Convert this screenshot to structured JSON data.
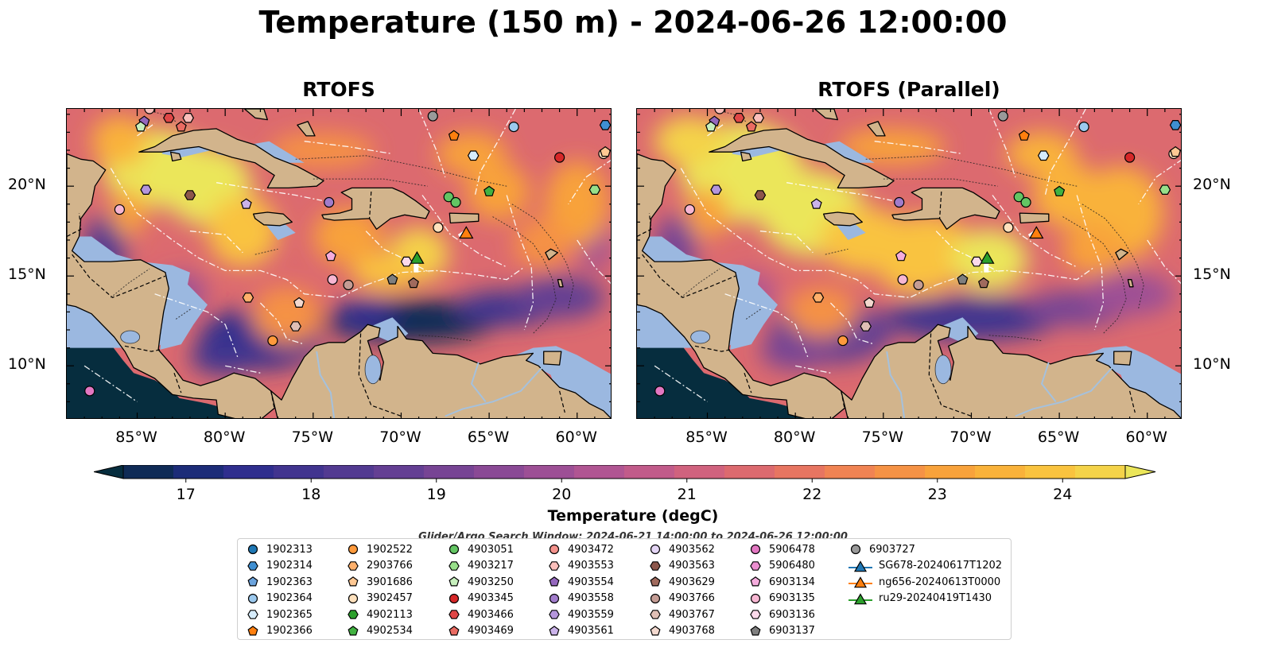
{
  "figure": {
    "title": "Temperature (150 m) - 2024-06-26 12:00:00",
    "search_window": "Glider/Argo Search Window: 2024-06-21 14:00:00 to 2024-06-26 12:00:00"
  },
  "panels": [
    {
      "title": "RTOFS"
    },
    {
      "title": "RTOFS (Parallel)"
    }
  ],
  "axes": {
    "lon_ticks": [
      "85°W",
      "80°W",
      "75°W",
      "70°W",
      "65°W",
      "60°W"
    ],
    "lat_ticks": [
      "20°N",
      "15°N",
      "10°N"
    ],
    "lon_range": [
      -89,
      -58
    ],
    "lat_range": [
      7,
      24.3
    ]
  },
  "colorbar": {
    "label": "Temperature (degC)",
    "ticks": [
      "17",
      "18",
      "19",
      "20",
      "21",
      "22",
      "23",
      "24"
    ],
    "range": [
      16.5,
      24.5
    ],
    "extend": "both",
    "colors": [
      "#062d3e",
      "#0f2b56",
      "#1c2c78",
      "#2f2e8e",
      "#41348f",
      "#523a91",
      "#643f93",
      "#774494",
      "#8a4995",
      "#9d4f95",
      "#b05592",
      "#c15b8a",
      "#d0627e",
      "#dc6a6f",
      "#e77561",
      "#f08353",
      "#f59245",
      "#f8a23b",
      "#f9b23a",
      "#f9c33f",
      "#f4d349",
      "#ebe65a"
    ]
  },
  "legend": {
    "items": [
      {
        "label": "1902313",
        "marker": "circle",
        "color": "#1f77b4"
      },
      {
        "label": "1902314",
        "marker": "hexagon",
        "color": "#3f8fd2"
      },
      {
        "label": "1902363",
        "marker": "pentagon",
        "color": "#6ba3dd"
      },
      {
        "label": "1902364",
        "marker": "circle",
        "color": "#9cc9ee"
      },
      {
        "label": "1902365",
        "marker": "hexagon",
        "color": "#d6ecfb"
      },
      {
        "label": "1902366",
        "marker": "pentagon",
        "color": "#ff7f0e"
      },
      {
        "label": "1902522",
        "marker": "circle",
        "color": "#ff9a3c"
      },
      {
        "label": "2903766",
        "marker": "hexagon",
        "color": "#ffb06b"
      },
      {
        "label": "3901686",
        "marker": "pentagon",
        "color": "#ffc893"
      },
      {
        "label": "3902457",
        "marker": "circle",
        "color": "#ffe1bd"
      },
      {
        "label": "4902113",
        "marker": "hexagon",
        "color": "#2ca02c"
      },
      {
        "label": "4902534",
        "marker": "pentagon",
        "color": "#41b241"
      },
      {
        "label": "4903051",
        "marker": "circle",
        "color": "#63c563"
      },
      {
        "label": "4903217",
        "marker": "hexagon",
        "color": "#98df8a"
      },
      {
        "label": "4903250",
        "marker": "pentagon",
        "color": "#c7f0bd"
      },
      {
        "label": "4903345",
        "marker": "circle",
        "color": "#d62728"
      },
      {
        "label": "4903466",
        "marker": "hexagon",
        "color": "#e04646"
      },
      {
        "label": "4903469",
        "marker": "pentagon",
        "color": "#ea6b62"
      },
      {
        "label": "4903472",
        "marker": "circle",
        "color": "#f4928c"
      },
      {
        "label": "4903553",
        "marker": "hexagon",
        "color": "#fbbfbb"
      },
      {
        "label": "4903554",
        "marker": "pentagon",
        "color": "#9467bd"
      },
      {
        "label": "4903558",
        "marker": "circle",
        "color": "#a17ccb"
      },
      {
        "label": "4903559",
        "marker": "hexagon",
        "color": "#b596dc"
      },
      {
        "label": "4903561",
        "marker": "pentagon",
        "color": "#cbb3ea"
      },
      {
        "label": "4903562",
        "marker": "circle",
        "color": "#e4d5f5"
      },
      {
        "label": "4903563",
        "marker": "hexagon",
        "color": "#8c564b"
      },
      {
        "label": "4903629",
        "marker": "pentagon",
        "color": "#a06a5d"
      },
      {
        "label": "4903766",
        "marker": "circle",
        "color": "#c49c94"
      },
      {
        "label": "4903767",
        "marker": "hexagon",
        "color": "#e0bfb5"
      },
      {
        "label": "4903768",
        "marker": "pentagon",
        "color": "#f3d9cf"
      },
      {
        "label": "5906478",
        "marker": "circle",
        "color": "#e377c2"
      },
      {
        "label": "5906480",
        "marker": "hexagon",
        "color": "#ec8fd0"
      },
      {
        "label": "6903134",
        "marker": "pentagon",
        "color": "#f5acdd"
      },
      {
        "label": "6903135",
        "marker": "circle",
        "color": "#f7b6d2"
      },
      {
        "label": "6903136",
        "marker": "hexagon",
        "color": "#fbd9ea"
      },
      {
        "label": "6903137",
        "marker": "pentagon",
        "color": "#7f7f7f"
      },
      {
        "label": "6903727",
        "marker": "circle",
        "color": "#9a9a9a"
      },
      {
        "label": "SG678-20240617T1202",
        "marker": "triangle",
        "color": "#1f77b4"
      },
      {
        "label": "ng656-20240613T0000",
        "marker": "triangle",
        "color": "#ff7f0e"
      },
      {
        "label": "ru29-20240419T1430",
        "marker": "triangle",
        "color": "#2ca02c"
      }
    ]
  },
  "map_overlay": {
    "colors": {
      "land": "#d2b48c",
      "shelf": "#9bb8e0",
      "coast": "#000000",
      "eez": "#ffffff",
      "river": "#a5c1dd",
      "glider_track": "#ffffff"
    },
    "markers": [
      {
        "lon": -84.3,
        "lat": 24.3,
        "color": "#fbbfbb",
        "marker": "circle"
      },
      {
        "lon": -83.2,
        "lat": 23.8,
        "color": "#e04646",
        "marker": "hexagon"
      },
      {
        "lon": -82.1,
        "lat": 23.8,
        "color": "#fbbfbb",
        "marker": "hexagon"
      },
      {
        "lon": -84.6,
        "lat": 23.6,
        "color": "#9467bd",
        "marker": "pentagon"
      },
      {
        "lon": -84.8,
        "lat": 23.3,
        "color": "#c7f0bd",
        "marker": "pentagon"
      },
      {
        "lon": -82.5,
        "lat": 23.3,
        "color": "#ea6b62",
        "marker": "pentagon"
      },
      {
        "lon": -68.2,
        "lat": 23.9,
        "color": "#9a9a9a",
        "marker": "circle"
      },
      {
        "lon": -63.6,
        "lat": 23.3,
        "color": "#9cc9ee",
        "marker": "circle"
      },
      {
        "lon": -58.4,
        "lat": 23.4,
        "color": "#3f8fd2",
        "marker": "hexagon"
      },
      {
        "lon": -67.0,
        "lat": 22.8,
        "color": "#ff7f0e",
        "marker": "pentagon"
      },
      {
        "lon": -65.9,
        "lat": 21.7,
        "color": "#d6ecfb",
        "marker": "hexagon"
      },
      {
        "lon": -61.0,
        "lat": 21.6,
        "color": "#d62728",
        "marker": "circle"
      },
      {
        "lon": -58.5,
        "lat": 21.8,
        "color": "#ffe1bd",
        "marker": "circle"
      },
      {
        "lon": -58.4,
        "lat": 21.9,
        "color": "#ffc893",
        "marker": "pentagon"
      },
      {
        "lon": -84.5,
        "lat": 19.8,
        "color": "#b596dc",
        "marker": "hexagon"
      },
      {
        "lon": -82.0,
        "lat": 19.5,
        "color": "#8c564b",
        "marker": "hexagon"
      },
      {
        "lon": -78.8,
        "lat": 19.0,
        "color": "#cbb3ea",
        "marker": "pentagon"
      },
      {
        "lon": -74.1,
        "lat": 19.1,
        "color": "#a17ccb",
        "marker": "circle"
      },
      {
        "lon": -67.3,
        "lat": 19.4,
        "color": "#63c563",
        "marker": "circle"
      },
      {
        "lon": -66.9,
        "lat": 19.1,
        "color": "#63c563",
        "marker": "circle"
      },
      {
        "lon": -65.0,
        "lat": 19.7,
        "color": "#41b241",
        "marker": "pentagon"
      },
      {
        "lon": -59.0,
        "lat": 19.8,
        "color": "#98df8a",
        "marker": "hexagon"
      },
      {
        "lon": -86.0,
        "lat": 18.7,
        "color": "#f7b6d2",
        "marker": "circle"
      },
      {
        "lon": -67.9,
        "lat": 17.7,
        "color": "#ffe1bd",
        "marker": "circle"
      },
      {
        "lon": -74.0,
        "lat": 16.1,
        "color": "#f5acdd",
        "marker": "pentagon"
      },
      {
        "lon": -69.7,
        "lat": 15.8,
        "color": "#fbd9ea",
        "marker": "hexagon"
      },
      {
        "lon": -73.9,
        "lat": 14.8,
        "color": "#f7b6d2",
        "marker": "circle"
      },
      {
        "lon": -73.0,
        "lat": 14.5,
        "color": "#c49c94",
        "marker": "circle"
      },
      {
        "lon": -70.5,
        "lat": 14.8,
        "color": "#7f7f7f",
        "marker": "pentagon"
      },
      {
        "lon": -69.3,
        "lat": 14.6,
        "color": "#a06a5d",
        "marker": "pentagon"
      },
      {
        "lon": -78.7,
        "lat": 13.8,
        "color": "#ffb06b",
        "marker": "hexagon"
      },
      {
        "lon": -75.8,
        "lat": 13.5,
        "color": "#f3d9cf",
        "marker": "pentagon"
      },
      {
        "lon": -76.0,
        "lat": 12.2,
        "color": "#e0bfb5",
        "marker": "hexagon"
      },
      {
        "lon": -77.3,
        "lat": 11.4,
        "color": "#ff9a3c",
        "marker": "circle"
      },
      {
        "lon": -87.7,
        "lat": 8.6,
        "color": "#e377c2",
        "marker": "circle"
      }
    ],
    "gliders": [
      {
        "lon": -69.1,
        "lat": 16.0,
        "color": "#2ca02c",
        "track": [
          [
            -69.15,
            15.2
          ],
          [
            -69.15,
            16.0
          ]
        ]
      },
      {
        "lon": -66.3,
        "lat": 17.4,
        "color": "#ff7f0e",
        "track": [
          [
            -66.7,
            17.2
          ],
          [
            -66.3,
            17.45
          ]
        ]
      }
    ]
  }
}
